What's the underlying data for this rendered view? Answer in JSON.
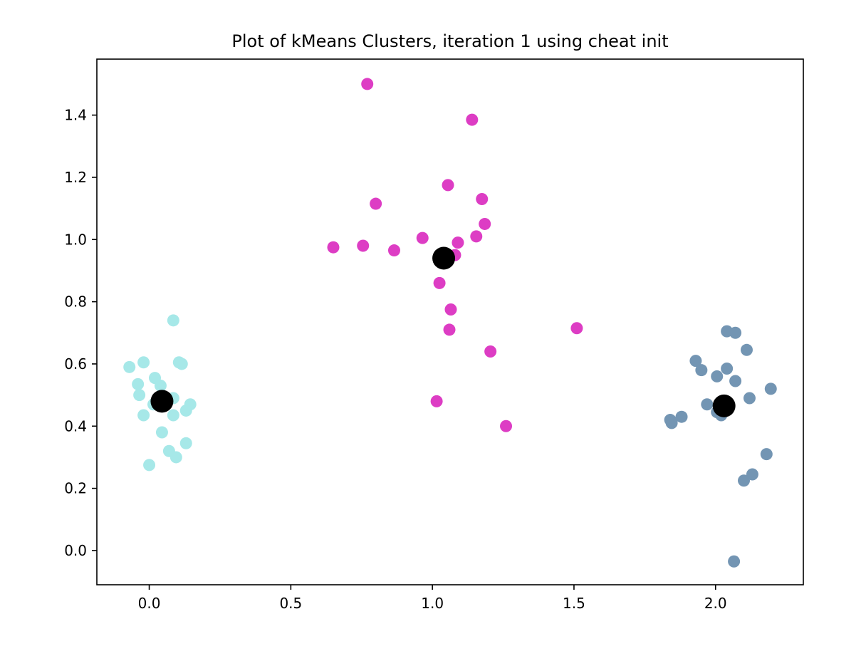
{
  "chart_data": {
    "type": "scatter",
    "title": "Plot of kMeans Clusters, iteration 1 using cheat init",
    "xlabel": "",
    "ylabel": "",
    "xlim": [
      -0.185,
      2.31
    ],
    "ylim": [
      -0.11,
      1.58
    ],
    "xticks": [
      0.0,
      0.5,
      1.0,
      1.5,
      2.0
    ],
    "xtick_labels": [
      "0.0",
      "0.5",
      "1.0",
      "1.5",
      "2.0"
    ],
    "yticks": [
      0.0,
      0.2,
      0.4,
      0.6,
      0.8,
      1.0,
      1.2,
      1.4
    ],
    "ytick_labels": [
      "0.0",
      "0.2",
      "0.4",
      "0.6",
      "0.8",
      "1.0",
      "1.2",
      "1.4"
    ],
    "grid": false,
    "series": [
      {
        "color": "#a6e8e8",
        "points": [
          [
            0.085,
            0.74
          ],
          [
            -0.07,
            0.59
          ],
          [
            -0.02,
            0.605
          ],
          [
            0.105,
            0.605
          ],
          [
            0.115,
            0.6
          ],
          [
            0.02,
            0.555
          ],
          [
            -0.04,
            0.535
          ],
          [
            0.04,
            0.53
          ],
          [
            -0.035,
            0.5
          ],
          [
            0.085,
            0.49
          ],
          [
            0.015,
            0.47
          ],
          [
            0.145,
            0.47
          ],
          [
            0.13,
            0.45
          ],
          [
            -0.02,
            0.435
          ],
          [
            0.085,
            0.435
          ],
          [
            0.045,
            0.38
          ],
          [
            0.13,
            0.345
          ],
          [
            0.07,
            0.32
          ],
          [
            0.095,
            0.3
          ],
          [
            0.0,
            0.275
          ]
        ]
      },
      {
        "color": "#dd3dc4",
        "points": [
          [
            0.77,
            1.5
          ],
          [
            1.14,
            1.385
          ],
          [
            1.055,
            1.175
          ],
          [
            1.175,
            1.13
          ],
          [
            0.8,
            1.115
          ],
          [
            1.185,
            1.05
          ],
          [
            0.965,
            1.005
          ],
          [
            1.155,
            1.01
          ],
          [
            1.09,
            0.99
          ],
          [
            0.65,
            0.975
          ],
          [
            0.755,
            0.98
          ],
          [
            0.865,
            0.965
          ],
          [
            1.08,
            0.95
          ],
          [
            1.025,
            0.86
          ],
          [
            1.065,
            0.775
          ],
          [
            1.06,
            0.71
          ],
          [
            1.51,
            0.715
          ],
          [
            1.205,
            0.64
          ],
          [
            1.015,
            0.48
          ],
          [
            1.26,
            0.4
          ]
        ]
      },
      {
        "color": "#7395b3",
        "points": [
          [
            2.04,
            0.705
          ],
          [
            2.07,
            0.7
          ],
          [
            2.11,
            0.645
          ],
          [
            1.93,
            0.61
          ],
          [
            2.04,
            0.585
          ],
          [
            1.95,
            0.58
          ],
          [
            2.005,
            0.56
          ],
          [
            2.07,
            0.545
          ],
          [
            2.195,
            0.52
          ],
          [
            2.12,
            0.49
          ],
          [
            1.97,
            0.47
          ],
          [
            2.005,
            0.445
          ],
          [
            2.02,
            0.435
          ],
          [
            1.88,
            0.43
          ],
          [
            1.84,
            0.42
          ],
          [
            1.845,
            0.41
          ],
          [
            2.18,
            0.31
          ],
          [
            2.13,
            0.245
          ],
          [
            2.1,
            0.225
          ],
          [
            2.065,
            -0.035
          ]
        ]
      }
    ],
    "centroids": {
      "color": "#000000",
      "points": [
        [
          0.045,
          0.48
        ],
        [
          1.04,
          0.94
        ],
        [
          2.03,
          0.465
        ]
      ]
    }
  }
}
